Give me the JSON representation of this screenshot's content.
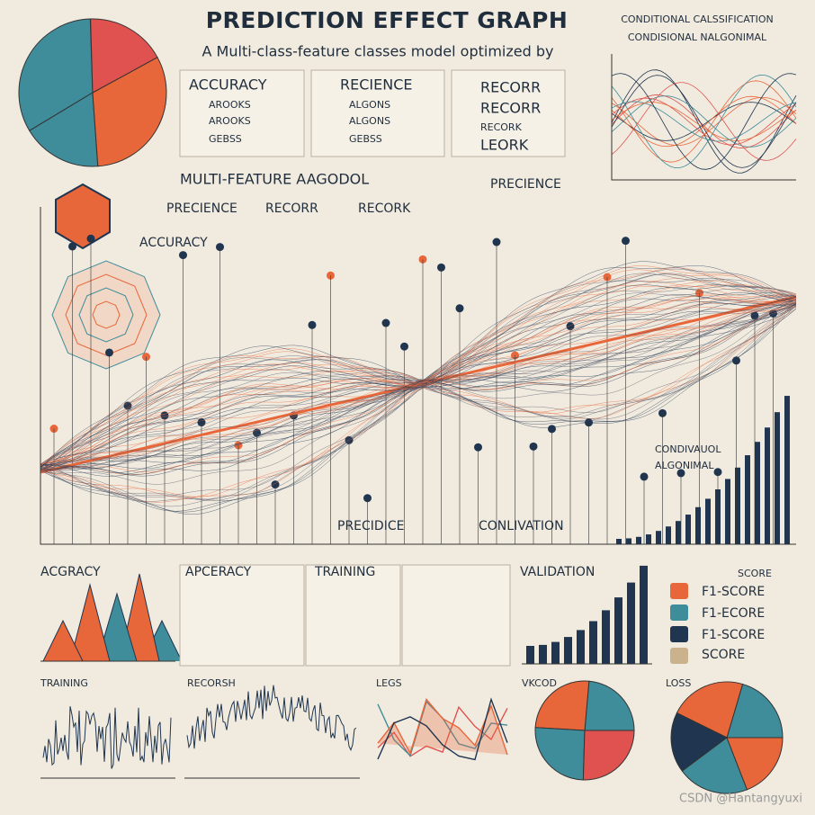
{
  "header": {
    "title": "PREDICTION EFFECT GRAPH",
    "subtitle": "A Multi-class-feature classes model optimized by"
  },
  "legend_boxes": [
    {
      "title": "ACCURACY",
      "items": [
        "AROOKS",
        "AROOKS",
        "GEBSS"
      ]
    },
    {
      "title": "RECIENCE",
      "items": [
        "ALGONS",
        "ALGONS",
        "GEBSS"
      ]
    },
    {
      "items": [
        "RECORR",
        "RECORR",
        "RECORK",
        "LEORK"
      ]
    }
  ],
  "top_right": {
    "title": "CONDITIONAL CALSSIFICATION",
    "subtitle": "CONDISIONAL NALGONIMAL"
  },
  "main": {
    "title": "MULTI-FEATURE AAGODOL",
    "labels": [
      "PRECIENCE",
      "RECORR",
      "RECORK",
      "ACCURACY",
      "PRECIENCE",
      "PRECIDICE",
      "CONLIVATION",
      "CONDIVAUOL",
      "ALGONIMAL"
    ]
  },
  "bottom_panels": [
    "ACGRACY",
    "APCERACY",
    "TRAINING",
    "VALIDATION"
  ],
  "scores": [
    "SCORE",
    "F1-SCORE",
    "F1-ECORE",
    "F1-SCORE",
    "SCORE"
  ],
  "lower_panels": [
    "TRAINING",
    "RECORSH",
    "LEGS",
    "VKCOD",
    "LOSS"
  ],
  "watermark": "CSDN @Hantangyuxi"
}
